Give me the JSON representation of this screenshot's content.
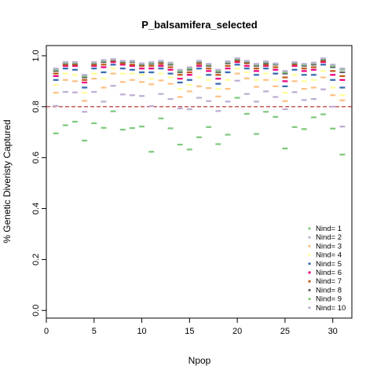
{
  "chart_data": {
    "type": "scatter",
    "title": "P_balsamifera_selected",
    "xlabel": "Npop",
    "ylabel": "% Genetic Diveristy Captured",
    "xlim": [
      0,
      32
    ],
    "ylim": [
      -0.03,
      1.04
    ],
    "xticks": [
      "0",
      "5",
      "10",
      "15",
      "20",
      "25",
      "30"
    ],
    "yticks": [
      "0.0",
      "0.2",
      "0.4",
      "0.6",
      "0.8",
      "1.0"
    ],
    "reference_line": {
      "y": 0.8,
      "color": "#b22222",
      "style": "dashed"
    },
    "legend_position": "bottom-right",
    "grid": false,
    "x": [
      1,
      2,
      3,
      4,
      5,
      6,
      7,
      8,
      9,
      10,
      11,
      12,
      13,
      14,
      15,
      16,
      17,
      18,
      19,
      20,
      21,
      22,
      23,
      24,
      25,
      26,
      27,
      28,
      29,
      30,
      31
    ],
    "series": [
      {
        "name": "Nind= 1",
        "color": "#7fc97f",
        "values": [
          0.695,
          0.727,
          0.741,
          0.667,
          0.735,
          0.717,
          0.782,
          0.71,
          0.716,
          0.722,
          0.623,
          0.754,
          0.715,
          0.651,
          0.632,
          0.68,
          0.72,
          0.653,
          0.69,
          0.835,
          0.772,
          0.693,
          0.78,
          0.76,
          0.636,
          0.72,
          0.712,
          0.758,
          0.77,
          0.714,
          0.612
        ]
      },
      {
        "name": "Nind= 2",
        "color": "#beaed4",
        "values": [
          0.803,
          0.858,
          0.856,
          0.78,
          0.858,
          0.82,
          0.882,
          0.848,
          0.845,
          0.842,
          0.802,
          0.85,
          0.83,
          0.793,
          0.79,
          0.835,
          0.822,
          0.783,
          0.82,
          0.902,
          0.85,
          0.82,
          0.86,
          0.838,
          0.79,
          0.857,
          0.826,
          0.83,
          0.868,
          0.8,
          0.722
        ]
      },
      {
        "name": "Nind= 3",
        "color": "#fdc086",
        "values": [
          0.855,
          0.905,
          0.9,
          0.823,
          0.91,
          0.875,
          0.93,
          0.897,
          0.905,
          0.897,
          0.888,
          0.903,
          0.89,
          0.838,
          0.86,
          0.88,
          0.873,
          0.84,
          0.87,
          0.93,
          0.911,
          0.878,
          0.905,
          0.88,
          0.822,
          0.9,
          0.87,
          0.875,
          0.915,
          0.845,
          0.825
        ]
      },
      {
        "name": "Nind= 4",
        "color": "#ffff99",
        "values": [
          0.885,
          0.93,
          0.925,
          0.855,
          0.93,
          0.91,
          0.95,
          0.93,
          0.93,
          0.925,
          0.91,
          0.93,
          0.915,
          0.87,
          0.885,
          0.915,
          0.905,
          0.87,
          0.905,
          0.95,
          0.935,
          0.905,
          0.93,
          0.905,
          0.855,
          0.925,
          0.9,
          0.905,
          0.94,
          0.875,
          0.845
        ]
      },
      {
        "name": "Nind= 5",
        "color": "#386cb0",
        "values": [
          0.905,
          0.95,
          0.945,
          0.875,
          0.95,
          0.935,
          0.965,
          0.95,
          0.945,
          0.935,
          0.935,
          0.95,
          0.93,
          0.895,
          0.905,
          0.95,
          0.925,
          0.89,
          0.935,
          0.965,
          0.95,
          0.925,
          0.95,
          0.93,
          0.88,
          0.945,
          0.925,
          0.925,
          0.965,
          0.905,
          0.875
        ]
      },
      {
        "name": "Nind= 6",
        "color": "#f0027f",
        "values": [
          0.92,
          0.96,
          0.96,
          0.895,
          0.96,
          0.955,
          0.975,
          0.965,
          0.96,
          0.95,
          0.95,
          0.96,
          0.945,
          0.91,
          0.925,
          0.96,
          0.94,
          0.91,
          0.95,
          0.975,
          0.96,
          0.94,
          0.96,
          0.945,
          0.9,
          0.96,
          0.94,
          0.945,
          0.975,
          0.925,
          0.905
        ]
      },
      {
        "name": "Nind= 7",
        "color": "#bf5b17",
        "values": [
          0.93,
          0.965,
          0.965,
          0.905,
          0.965,
          0.965,
          0.98,
          0.97,
          0.965,
          0.96,
          0.96,
          0.968,
          0.955,
          0.925,
          0.935,
          0.968,
          0.95,
          0.925,
          0.96,
          0.98,
          0.97,
          0.95,
          0.965,
          0.955,
          0.915,
          0.965,
          0.95,
          0.955,
          0.98,
          0.94,
          0.92
        ]
      },
      {
        "name": "Nind= 8",
        "color": "#666666",
        "values": [
          0.94,
          0.97,
          0.97,
          0.915,
          0.97,
          0.975,
          0.983,
          0.975,
          0.975,
          0.965,
          0.968,
          0.975,
          0.965,
          0.935,
          0.945,
          0.975,
          0.96,
          0.935,
          0.97,
          0.985,
          0.975,
          0.96,
          0.97,
          0.965,
          0.93,
          0.97,
          0.96,
          0.965,
          0.985,
          0.955,
          0.935
        ]
      },
      {
        "name": "Nind= 9",
        "color": "#7fc97f",
        "values": [
          0.945,
          0.972,
          0.972,
          0.92,
          0.972,
          0.98,
          0.985,
          0.978,
          0.978,
          0.968,
          0.972,
          0.978,
          0.97,
          0.94,
          0.95,
          0.978,
          0.965,
          0.94,
          0.975,
          0.988,
          0.978,
          0.965,
          0.975,
          0.968,
          0.935,
          0.973,
          0.965,
          0.97,
          0.988,
          0.96,
          0.945
        ]
      },
      {
        "name": "Nind= 10",
        "color": "#beaed4",
        "values": [
          0.95,
          0.975,
          0.975,
          0.925,
          0.975,
          0.983,
          0.987,
          0.98,
          0.98,
          0.97,
          0.975,
          0.98,
          0.973,
          0.945,
          0.955,
          0.98,
          0.968,
          0.945,
          0.978,
          0.99,
          0.98,
          0.968,
          0.978,
          0.97,
          0.94,
          0.975,
          0.968,
          0.973,
          0.99,
          0.965,
          0.95
        ]
      }
    ]
  }
}
